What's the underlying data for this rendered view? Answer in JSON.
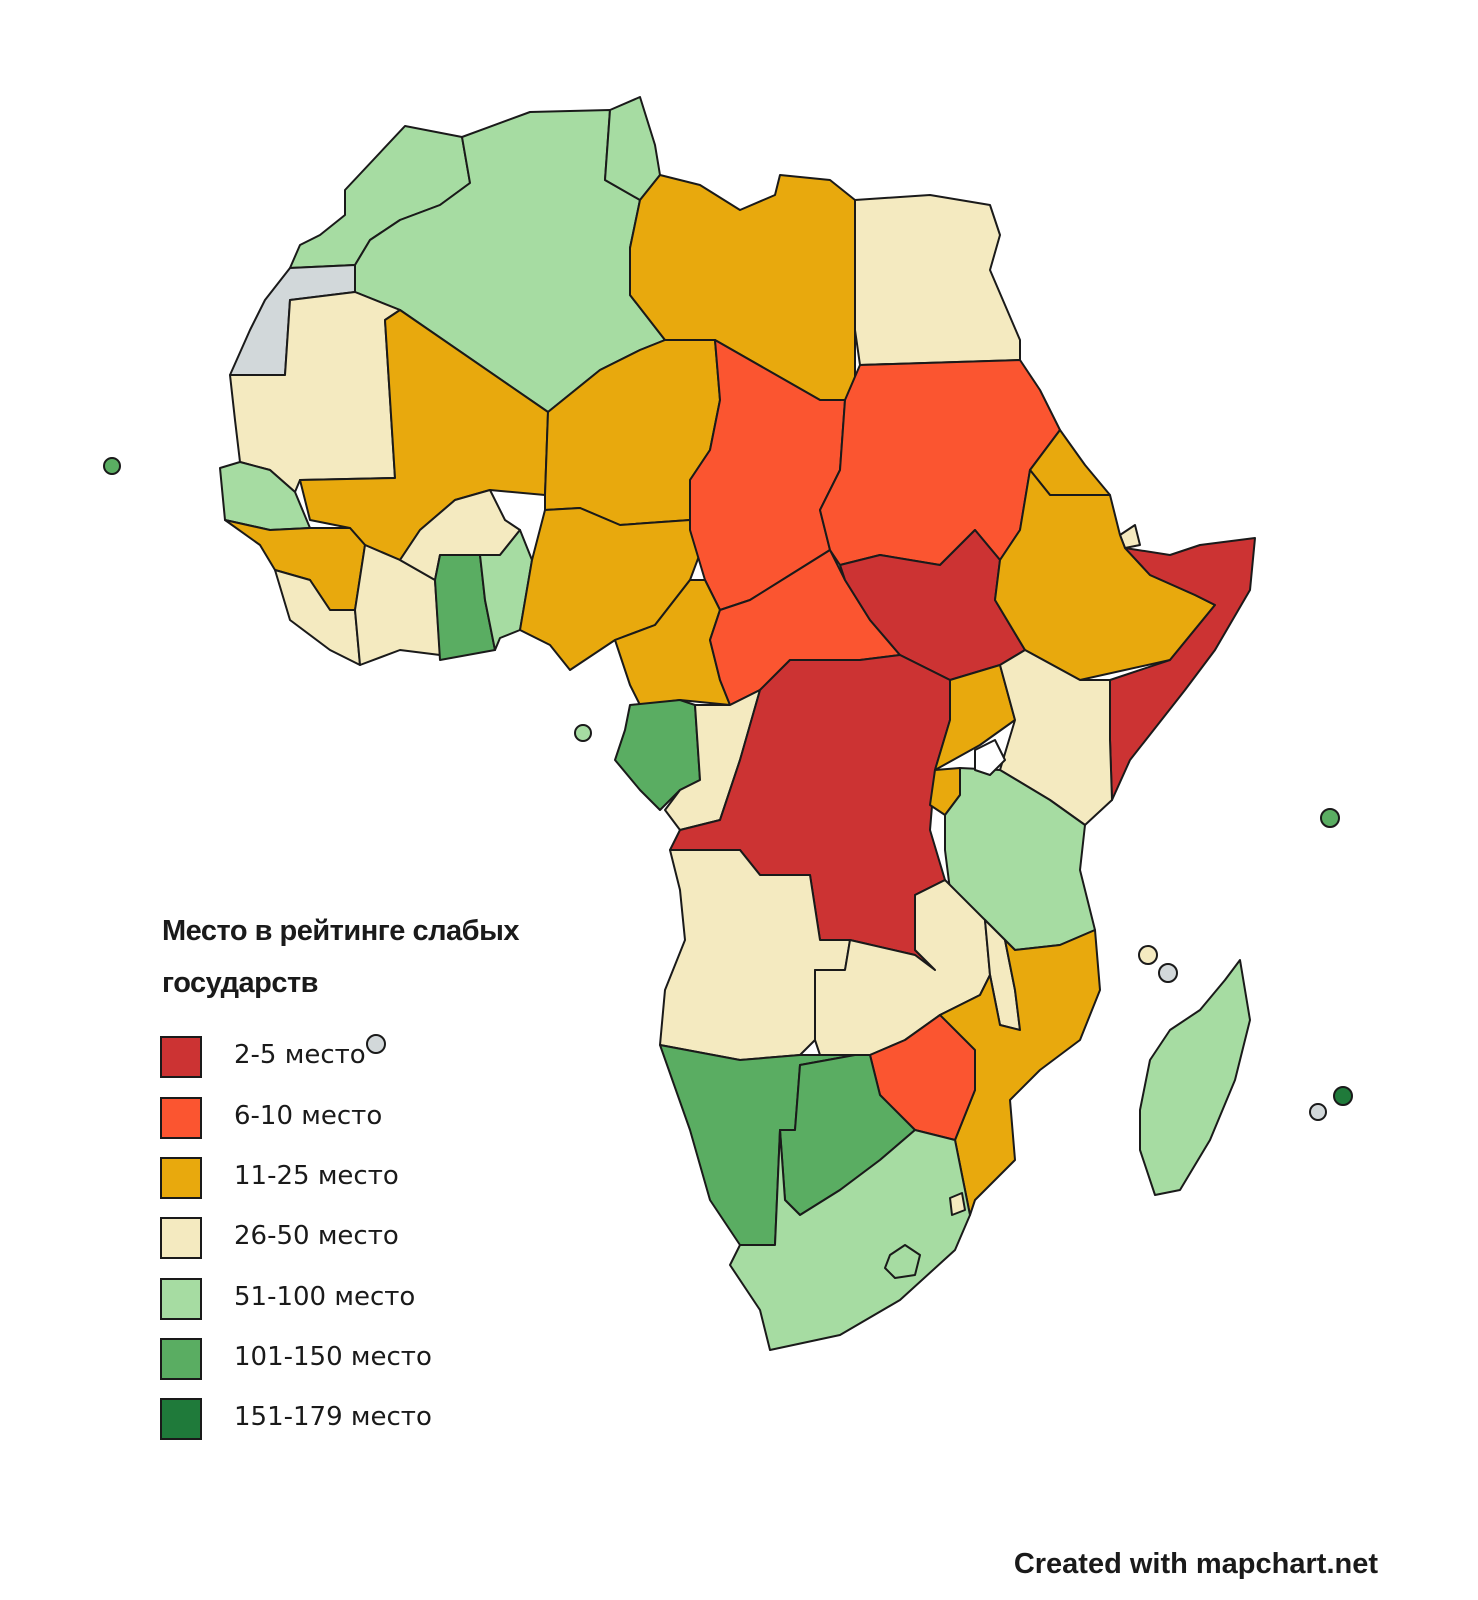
{
  "colors": {
    "rank_2_5": "#cc3333",
    "rank_6_10": "#fb5530",
    "rank_11_25": "#e8a90d",
    "rank_26_50": "#f4eac0",
    "rank_51_100": "#a6dca2",
    "rank_101_150": "#5aad62",
    "rank_151_179": "#1f7a3a",
    "no_data": "#d2d8da",
    "water": "#ffffff"
  },
  "legend": {
    "title": "Место в рейтинге слабых государств",
    "items": [
      {
        "label": "2-5 место",
        "color": "#cc3333"
      },
      {
        "label": "6-10 место",
        "color": "#fb5530"
      },
      {
        "label": "11-25 место",
        "color": "#e8a90d"
      },
      {
        "label": "26-50 место",
        "color": "#f4eac0"
      },
      {
        "label": "51-100 место",
        "color": "#a6dca2"
      },
      {
        "label": "101-150 место",
        "color": "#5aad62"
      },
      {
        "label": "151-179 место",
        "color": "#1f7a3a"
      }
    ]
  },
  "credit": "Created with mapchart.net"
}
